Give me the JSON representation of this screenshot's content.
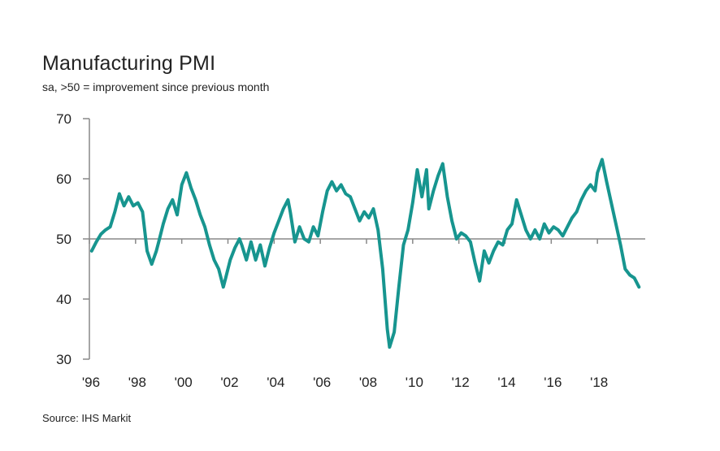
{
  "chart_data": {
    "type": "line",
    "title": "Manufacturing PMI",
    "subtitle": "sa, >50 = improvement since previous month",
    "source": "Source: IHS Markit",
    "ylim": [
      30,
      70
    ],
    "xlim": [
      1996.0,
      2020.0
    ],
    "yticks": [
      70,
      60,
      50,
      40,
      30
    ],
    "ytick_labels": [
      "70",
      "60",
      "50",
      "40",
      "30"
    ],
    "xticks": [
      1996,
      1998,
      2000,
      2002,
      2004,
      2006,
      2008,
      2010,
      2012,
      2014,
      2016,
      2018
    ],
    "xtick_labels": [
      "'96",
      "'98",
      "'00",
      "'02",
      "'04",
      "'06",
      "'08",
      "'10",
      "'12",
      "'14",
      "'16",
      "'18"
    ],
    "reference_line": 50,
    "line_color": "#17958f",
    "axis_color": "#888888",
    "grid": false,
    "series": [
      {
        "x": [
          1996.1,
          1996.3,
          1996.5,
          1996.7,
          1996.9,
          1997.1,
          1997.3,
          1997.5,
          1997.7,
          1997.9,
          1998.1,
          1998.3,
          1998.5,
          1998.7,
          1998.9,
          1999.0,
          1999.2,
          1999.4,
          1999.6,
          1999.8,
          2000.0,
          2000.2,
          2000.4,
          2000.6,
          2000.8,
          2001.0,
          2001.2,
          2001.4,
          2001.6,
          2001.8,
          2001.9,
          2002.1,
          2002.3,
          2002.5,
          2002.6,
          2002.8,
          2003.0,
          2003.2,
          2003.4,
          2003.6,
          2003.8,
          2004.0,
          2004.2,
          2004.4,
          2004.6,
          2004.7,
          2004.9,
          2005.1,
          2005.3,
          2005.5,
          2005.7,
          2005.9,
          2006.1,
          2006.3,
          2006.5,
          2006.7,
          2006.9,
          2007.1,
          2007.3,
          2007.5,
          2007.7,
          2007.9,
          2008.1,
          2008.3,
          2008.5,
          2008.7,
          2008.9,
          2009.0,
          2009.2,
          2009.4,
          2009.6,
          2009.8,
          2010.0,
          2010.2,
          2010.4,
          2010.6,
          2010.7,
          2010.9,
          2011.1,
          2011.3,
          2011.5,
          2011.7,
          2011.9,
          2012.1,
          2012.3,
          2012.5,
          2012.7,
          2012.9,
          2013.1,
          2013.3,
          2013.5,
          2013.7,
          2013.9,
          2014.1,
          2014.3,
          2014.5,
          2014.7,
          2014.9,
          2015.1,
          2015.3,
          2015.5,
          2015.7,
          2015.9,
          2016.1,
          2016.3,
          2016.5,
          2016.7,
          2016.9,
          2017.1,
          2017.3,
          2017.5,
          2017.7,
          2017.9,
          2018.0,
          2018.2,
          2018.4,
          2018.6,
          2018.8,
          2019.0,
          2019.2,
          2019.4,
          2019.6,
          2019.8
        ],
        "y": [
          48.0,
          49.5,
          50.8,
          51.5,
          52.0,
          54.5,
          57.5,
          55.5,
          57.0,
          55.5,
          56.0,
          54.5,
          48.0,
          45.8,
          48.0,
          49.5,
          52.5,
          55.0,
          56.5,
          54.0,
          59.0,
          61.0,
          58.5,
          56.5,
          54.0,
          52.0,
          49.0,
          46.5,
          45.0,
          42.0,
          43.5,
          46.5,
          48.5,
          50.0,
          49.0,
          46.5,
          49.5,
          46.5,
          49.0,
          45.5,
          48.5,
          51.0,
          53.0,
          55.0,
          56.5,
          54.5,
          49.5,
          52.0,
          50.0,
          49.5,
          52.0,
          50.5,
          54.5,
          58.0,
          59.5,
          58.0,
          59.0,
          57.5,
          57.0,
          55.0,
          53.0,
          54.5,
          53.5,
          55.0,
          51.5,
          45.0,
          35.0,
          32.0,
          34.5,
          42.0,
          49.0,
          51.5,
          56.0,
          61.5,
          57.0,
          61.5,
          55.0,
          58.0,
          60.5,
          62.5,
          57.0,
          53.0,
          50.0,
          51.0,
          50.5,
          49.5,
          46.0,
          43.0,
          48.0,
          46.0,
          48.0,
          49.5,
          49.0,
          51.5,
          52.5,
          56.5,
          54.0,
          51.5,
          50.0,
          51.5,
          50.0,
          52.5,
          51.0,
          52.0,
          51.5,
          50.5,
          52.0,
          53.5,
          54.5,
          56.5,
          58.0,
          59.0,
          58.0,
          61.0,
          63.2,
          59.5,
          56.0,
          52.5,
          49.0,
          45.0,
          44.0,
          43.5,
          42.0
        ]
      }
    ]
  }
}
